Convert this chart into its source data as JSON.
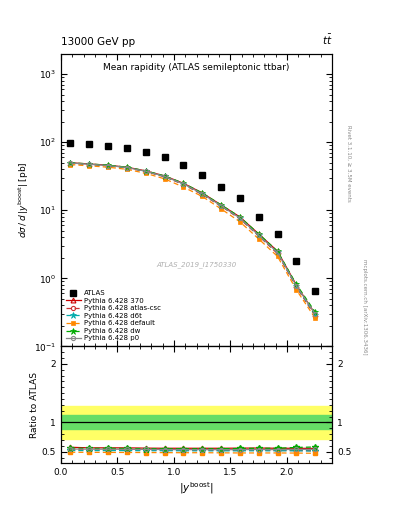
{
  "title_top": "13000 GeV pp",
  "title_top_right": "tt",
  "plot_title": "Mean rapidity (ATLAS semileptonic ttbar)",
  "ylabel_main": "dσ / d |y^{boost}| [pb]",
  "ylabel_ratio": "Ratio to ATLAS",
  "xlabel": "|y^{boost}|",
  "right_label_top": "Rivet 3.1.10, ≥ 3.5M events",
  "right_label_bottom": "mcplots.cern.ch [arXiv:1306.3436]",
  "watermark": "ATLAS_2019_I1750330",
  "atlas_data_x": [
    0.083,
    0.25,
    0.417,
    0.583,
    0.75,
    0.917,
    1.083,
    1.25,
    1.417,
    1.583,
    1.75,
    1.917,
    2.083,
    2.25
  ],
  "atlas_data_y": [
    98,
    93,
    88,
    82,
    73,
    61,
    46,
    33,
    22,
    15,
    8,
    4.5,
    1.8,
    0.65
  ],
  "pythia_x": [
    0.083,
    0.25,
    0.417,
    0.583,
    0.75,
    0.917,
    1.083,
    1.25,
    1.417,
    1.583,
    1.75,
    1.917,
    2.083,
    2.25
  ],
  "pythia_370_y": [
    50,
    48,
    46,
    43,
    38,
    32,
    25,
    18,
    12,
    8,
    4.5,
    2.5,
    0.8,
    0.3
  ],
  "pythia_atlascsc_y": [
    49,
    47,
    45,
    42,
    37,
    31,
    24,
    17,
    11.5,
    7.5,
    4.2,
    2.3,
    0.75,
    0.28
  ],
  "pythia_d6t_y": [
    49.5,
    47.5,
    45.5,
    42.5,
    37.5,
    31.5,
    24.5,
    17.5,
    11.7,
    7.7,
    4.3,
    2.4,
    0.77,
    0.29
  ],
  "pythia_default_y": [
    47,
    45,
    43,
    40,
    35,
    29,
    22,
    16,
    10.5,
    6.8,
    3.8,
    2.1,
    0.68,
    0.26
  ],
  "pythia_dw_y": [
    50,
    48,
    46,
    43,
    38,
    32,
    25,
    18,
    12,
    8,
    4.5,
    2.5,
    0.82,
    0.32
  ],
  "pythia_p0_y": [
    49.5,
    47.5,
    45.5,
    42.5,
    37.5,
    31.5,
    24.5,
    17.5,
    11.7,
    7.7,
    4.3,
    2.4,
    0.78,
    0.3
  ],
  "ratio_370_y": [
    0.575,
    0.565,
    0.565,
    0.565,
    0.56,
    0.558,
    0.558,
    0.558,
    0.558,
    0.56,
    0.562,
    0.558,
    0.558,
    0.555
  ],
  "ratio_atlascsc_y": [
    0.535,
    0.53,
    0.53,
    0.528,
    0.528,
    0.525,
    0.524,
    0.522,
    0.522,
    0.522,
    0.522,
    0.52,
    0.52,
    0.515
  ],
  "ratio_d6t_y": [
    0.52,
    0.518,
    0.518,
    0.518,
    0.516,
    0.516,
    0.515,
    0.514,
    0.514,
    0.514,
    0.515,
    0.515,
    0.515,
    0.51
  ],
  "ratio_default_y": [
    0.49,
    0.488,
    0.487,
    0.486,
    0.485,
    0.483,
    0.482,
    0.482,
    0.48,
    0.478,
    0.478,
    0.478,
    0.476,
    0.472
  ],
  "ratio_dw_y": [
    0.56,
    0.556,
    0.556,
    0.554,
    0.552,
    0.55,
    0.55,
    0.55,
    0.55,
    0.554,
    0.558,
    0.558,
    0.572,
    0.58
  ],
  "ratio_p0_y": [
    0.545,
    0.542,
    0.542,
    0.54,
    0.538,
    0.536,
    0.535,
    0.534,
    0.534,
    0.535,
    0.536,
    0.535,
    0.538,
    0.54
  ],
  "color_370": "#cc0000",
  "color_atlascsc": "#cc3333",
  "color_d6t": "#00aaaa",
  "color_default": "#ff8800",
  "color_dw": "#00aa00",
  "color_p0": "#888888",
  "xlim": [
    0,
    2.4
  ],
  "ylim_main": [
    0.1,
    2000
  ],
  "ylim_ratio": [
    0.3,
    2.3
  ],
  "ratio_yticks": [
    0.5,
    1.0,
    2.0
  ],
  "yellow_lo": 0.72,
  "yellow_hi": 1.28,
  "green_lo": 0.88,
  "green_hi": 1.12
}
